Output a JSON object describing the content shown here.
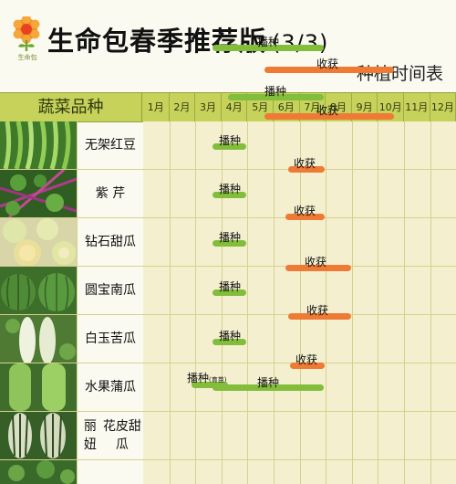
{
  "header": {
    "logo_text": "生命包",
    "title": "生命包春季推荐版",
    "part": "(3/3)",
    "subtitle": "种植时间表"
  },
  "table": {
    "veg_header": "蔬菜品种",
    "months": [
      "1月",
      "2月",
      "3月",
      "4月",
      "5月",
      "6月",
      "7月",
      "8月",
      "9月",
      "10月",
      "11月",
      "12月"
    ]
  },
  "rows": [
    {
      "name": "无架红豆",
      "sow_label": "播种",
      "harvest_label": "收获"
    },
    {
      "name": "紫 芹",
      "sow_label": "播种",
      "harvest_label": "收获"
    },
    {
      "name": "钻石甜瓜",
      "sow_label": "播种",
      "harvest_label": "收获"
    },
    {
      "name": "圆宝南瓜",
      "sow_label": "播种",
      "harvest_label": "收获"
    },
    {
      "name": "白玉苦瓜",
      "sow_label": "播种",
      "harvest_label": "收获"
    },
    {
      "name": "水果蒲瓜",
      "sow_label": "播种",
      "harvest_label": "收获"
    },
    {
      "name": "丽 妞\n花皮甜瓜",
      "sow_label": "播种",
      "harvest_label": "收获"
    },
    {
      "name": "",
      "sow_label": "播种",
      "sow_note": "(育苗)",
      "sow2_label": "播种"
    }
  ],
  "colors": {
    "sow": "#82bd3c",
    "harvest": "#ee7a34",
    "header_bg": "#c7d25a"
  }
}
